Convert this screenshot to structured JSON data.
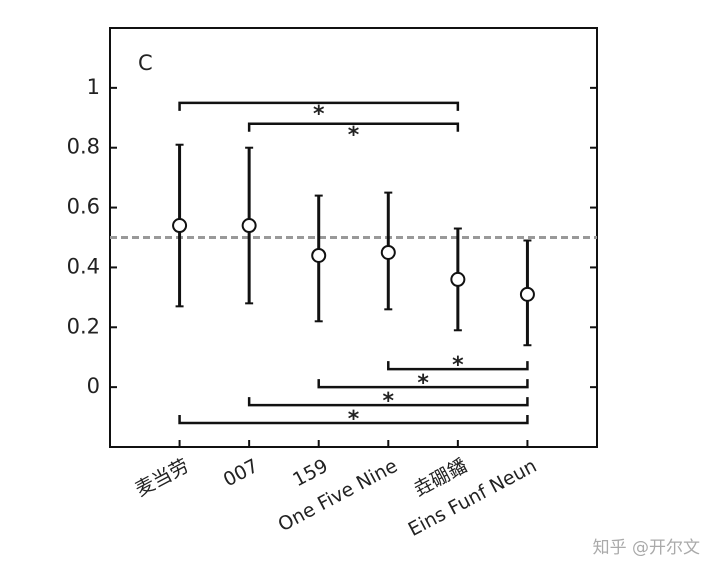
{
  "chart_data": {
    "type": "errorbar",
    "panel_label": "C",
    "categories": [
      "麦当劳",
      "007",
      "159",
      "One Five Nine",
      "垚硼鐇",
      "Eins Funf Neun"
    ],
    "values": [
      0.54,
      0.54,
      0.44,
      0.45,
      0.36,
      0.31
    ],
    "lower": [
      0.27,
      0.28,
      0.22,
      0.26,
      0.19,
      0.14
    ],
    "upper": [
      0.81,
      0.8,
      0.64,
      0.65,
      0.53,
      0.49
    ],
    "reference_line": 0.5,
    "ylim": [
      -0.2,
      1.2
    ],
    "yticks": [
      1,
      0.8,
      0.6,
      0.4,
      0.2,
      0
    ],
    "brackets": [
      {
        "from": 0,
        "to": 4,
        "y": 0.95,
        "label": "*"
      },
      {
        "from": 1,
        "to": 4,
        "y": 0.88,
        "label": "*"
      },
      {
        "from": 3,
        "to": 5,
        "y": 0.06,
        "label": "*"
      },
      {
        "from": 2,
        "to": 5,
        "y": 0,
        "label": "*"
      },
      {
        "from": 1,
        "to": 5,
        "y": -0.06,
        "label": "*"
      },
      {
        "from": 0,
        "to": 5,
        "y": -0.12,
        "label": "*"
      }
    ],
    "watermark": "知乎 @开尔文"
  }
}
